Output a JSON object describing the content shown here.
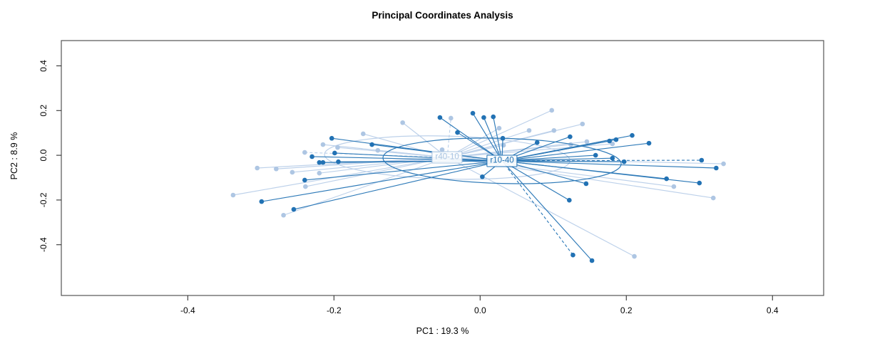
{
  "title": "Principal Coordinates Analysis",
  "chart_data": {
    "type": "scatter",
    "subtype": "pcoa-ordination-spider",
    "title": "Principal Coordinates Analysis",
    "xlabel": "PC1 : 19.3 %",
    "ylabel": "PC2 : 8.9 %",
    "xlim": [
      -0.573,
      0.47
    ],
    "ylim": [
      -0.627,
      0.513
    ],
    "x_ticks": [
      -0.4,
      -0.2,
      0.0,
      0.2,
      0.4
    ],
    "y_ticks": [
      -0.4,
      -0.2,
      0.0,
      0.2,
      0.4
    ],
    "x_tick_labels": [
      "-0.4",
      "-0.2",
      "0.0",
      "0.2",
      "0.4"
    ],
    "y_tick_labels": [
      "-0.4",
      "-0.2",
      "0.0",
      "0.2",
      "0.4"
    ],
    "grid": false,
    "legend_position": "none",
    "box_color": "#555555",
    "tick_color": "#333333",
    "groups": [
      {
        "label": "r40-10",
        "point_color": "#aec6e3",
        "line_color": "#bdd1ea",
        "text_color": "#a9c4e1",
        "centroid": [
          -0.045,
          -0.01
        ],
        "ellipse": {
          "rx": 0.168,
          "ry": 0.096,
          "rot_deg": 1.5
        },
        "dashed_point_indices": [
          1,
          20
        ],
        "points": [
          [
            -0.106,
            0.146
          ],
          [
            -0.04,
            0.166
          ],
          [
            0.098,
            0.201
          ],
          [
            0.14,
            0.14
          ],
          [
            0.026,
            0.121
          ],
          [
            0.067,
            0.111
          ],
          [
            0.101,
            0.111
          ],
          [
            0.124,
            0.048
          ],
          [
            0.146,
            0.061
          ],
          [
            0.181,
            0.051
          ],
          [
            0.032,
            0.045
          ],
          [
            -0.052,
            0.025
          ],
          [
            0.333,
            -0.038
          ],
          [
            0.265,
            -0.14
          ],
          [
            0.319,
            -0.191
          ],
          [
            0.211,
            -0.452
          ],
          [
            -0.16,
            0.096
          ],
          [
            -0.215,
            0.048
          ],
          [
            -0.195,
            0.035
          ],
          [
            -0.14,
            0.022
          ],
          [
            -0.24,
            0.013
          ],
          [
            -0.305,
            -0.057
          ],
          [
            -0.279,
            -0.061
          ],
          [
            -0.257,
            -0.076
          ],
          [
            -0.22,
            -0.08
          ],
          [
            -0.239,
            -0.14
          ],
          [
            -0.338,
            -0.178
          ],
          [
            -0.269,
            -0.268
          ]
        ]
      },
      {
        "label": "r10-40",
        "point_color": "#2272b4",
        "line_color": "#2e7ab8",
        "text_color": "#2272b4",
        "centroid": [
          0.03,
          -0.025
        ],
        "ellipse": {
          "rx": 0.163,
          "ry": 0.101,
          "rot_deg": 1.5
        },
        "dashed_point_indices": [
          15,
          22
        ],
        "points": [
          [
            -0.055,
            0.169
          ],
          [
            -0.031,
            0.102
          ],
          [
            -0.01,
            0.188
          ],
          [
            0.005,
            0.169
          ],
          [
            0.018,
            0.172
          ],
          [
            0.031,
            0.076
          ],
          [
            0.078,
            0.057
          ],
          [
            0.123,
            0.083
          ],
          [
            0.177,
            0.064
          ],
          [
            0.186,
            0.07
          ],
          [
            0.208,
            0.089
          ],
          [
            0.231,
            0.054
          ],
          [
            0.158,
            0.0
          ],
          [
            0.181,
            -0.013
          ],
          [
            0.197,
            -0.029
          ],
          [
            0.303,
            -0.022
          ],
          [
            0.323,
            -0.057
          ],
          [
            0.255,
            -0.105
          ],
          [
            0.3,
            -0.124
          ],
          [
            0.145,
            -0.127
          ],
          [
            0.122,
            -0.201
          ],
          [
            0.003,
            -0.096
          ],
          [
            0.127,
            -0.446
          ],
          [
            0.153,
            -0.471
          ],
          [
            -0.203,
            0.076
          ],
          [
            -0.148,
            0.048
          ],
          [
            -0.23,
            -0.006
          ],
          [
            -0.199,
            0.01
          ],
          [
            -0.22,
            -0.032
          ],
          [
            -0.215,
            -0.032
          ],
          [
            -0.194,
            -0.029
          ],
          [
            -0.24,
            -0.111
          ],
          [
            -0.299,
            -0.207
          ],
          [
            -0.255,
            -0.242
          ]
        ]
      }
    ]
  }
}
